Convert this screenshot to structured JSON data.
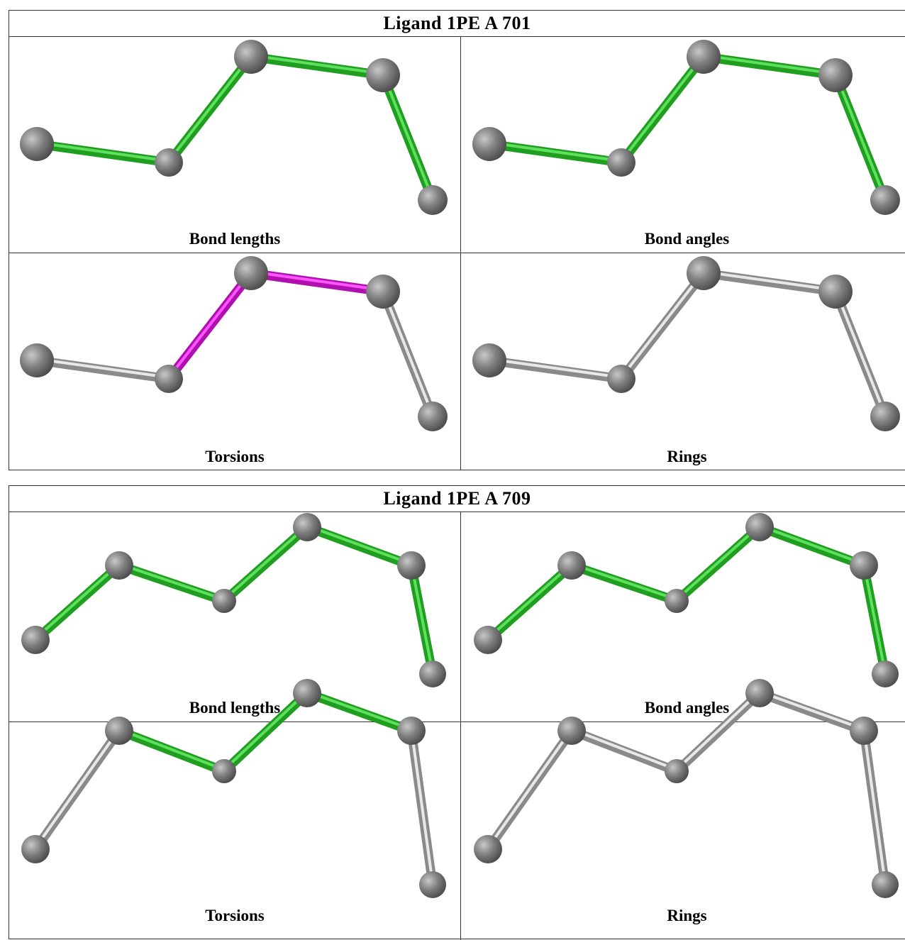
{
  "panels": [
    {
      "title": "Ligand 1PE A 701",
      "cells": [
        "Bond lengths",
        "Bond angles",
        "Torsions",
        "Rings"
      ]
    },
    {
      "title": "Ligand 1PE A 709",
      "cells": [
        "Bond lengths",
        "Bond angles",
        "Torsions",
        "Rings"
      ]
    }
  ]
}
